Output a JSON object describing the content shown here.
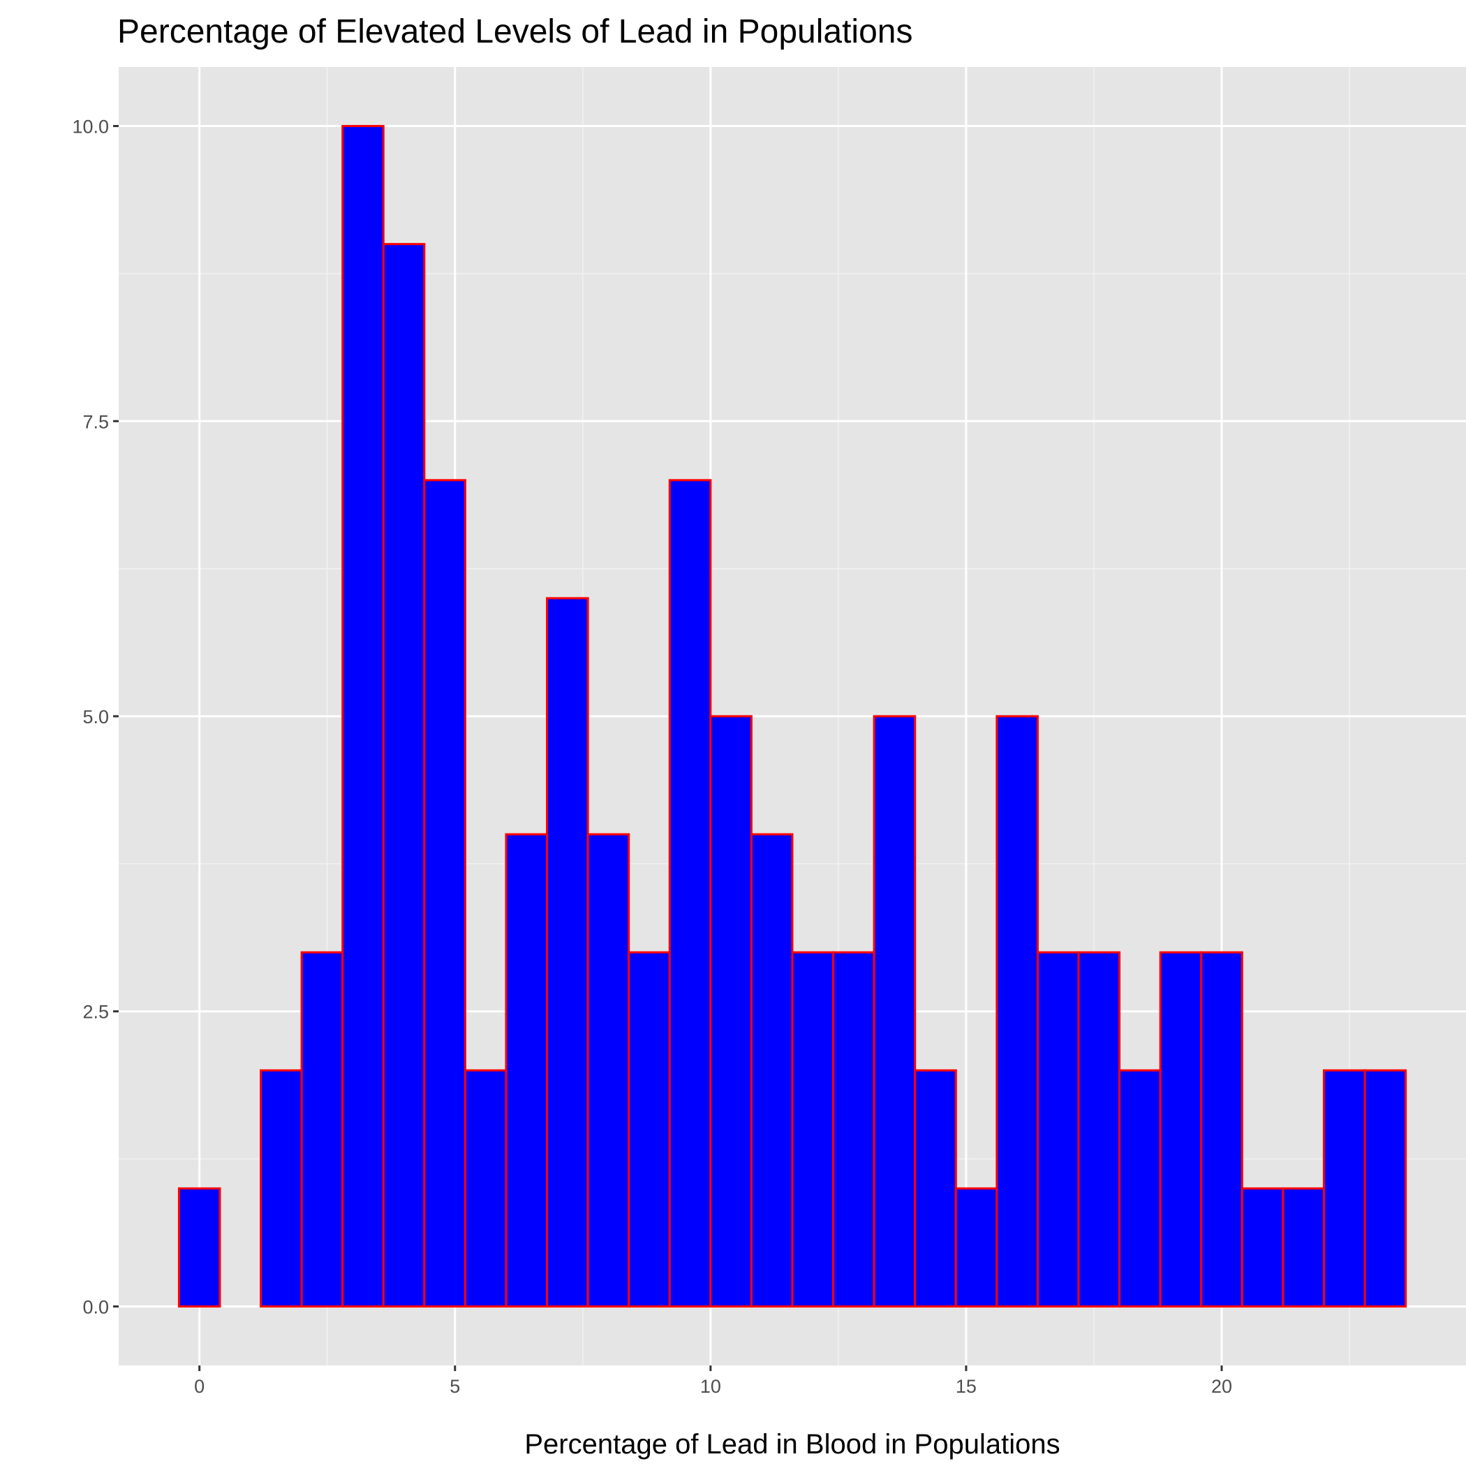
{
  "chart_data": {
    "type": "bar",
    "title": "Percentage of Elevated Levels of Lead in Populations",
    "xlabel": "Percentage of Lead in Blood in Populations",
    "ylabel": "",
    "bin_width": 0.8,
    "bins": [
      {
        "x": 0.0,
        "count": 1
      },
      {
        "x": 0.8,
        "count": 0
      },
      {
        "x": 1.6,
        "count": 2
      },
      {
        "x": 2.4,
        "count": 3
      },
      {
        "x": 3.2,
        "count": 10
      },
      {
        "x": 4.0,
        "count": 9
      },
      {
        "x": 4.8,
        "count": 7
      },
      {
        "x": 5.6,
        "count": 2
      },
      {
        "x": 6.4,
        "count": 4
      },
      {
        "x": 7.2,
        "count": 6
      },
      {
        "x": 8.0,
        "count": 4
      },
      {
        "x": 8.8,
        "count": 3
      },
      {
        "x": 9.6,
        "count": 7
      },
      {
        "x": 10.4,
        "count": 5
      },
      {
        "x": 11.2,
        "count": 4
      },
      {
        "x": 12.0,
        "count": 3
      },
      {
        "x": 12.8,
        "count": 3
      },
      {
        "x": 13.6,
        "count": 5
      },
      {
        "x": 14.4,
        "count": 2
      },
      {
        "x": 15.2,
        "count": 1
      },
      {
        "x": 16.0,
        "count": 5
      },
      {
        "x": 16.8,
        "count": 3
      },
      {
        "x": 17.6,
        "count": 3
      },
      {
        "x": 18.4,
        "count": 2
      },
      {
        "x": 19.2,
        "count": 3
      },
      {
        "x": 20.0,
        "count": 3
      },
      {
        "x": 20.8,
        "count": 1
      },
      {
        "x": 21.6,
        "count": 1
      },
      {
        "x": 22.4,
        "count": 2
      },
      {
        "x": 23.2,
        "count": 2
      }
    ],
    "x_ticks": [
      "0",
      "5",
      "10",
      "15",
      "20"
    ],
    "x_tick_values": [
      0,
      5,
      10,
      15,
      20
    ],
    "y_ticks": [
      "0.0",
      "2.5",
      "5.0",
      "7.5",
      "10.0"
    ],
    "y_tick_values": [
      0,
      2.5,
      5,
      7.5,
      10
    ],
    "xlim": [
      -1.58,
      24.78
    ],
    "ylim": [
      -0.5,
      10.5
    ],
    "grid": true,
    "fill_color": "#0000FF",
    "edge_color": "#FF0000",
    "panel_color": "#E5E5E5"
  }
}
